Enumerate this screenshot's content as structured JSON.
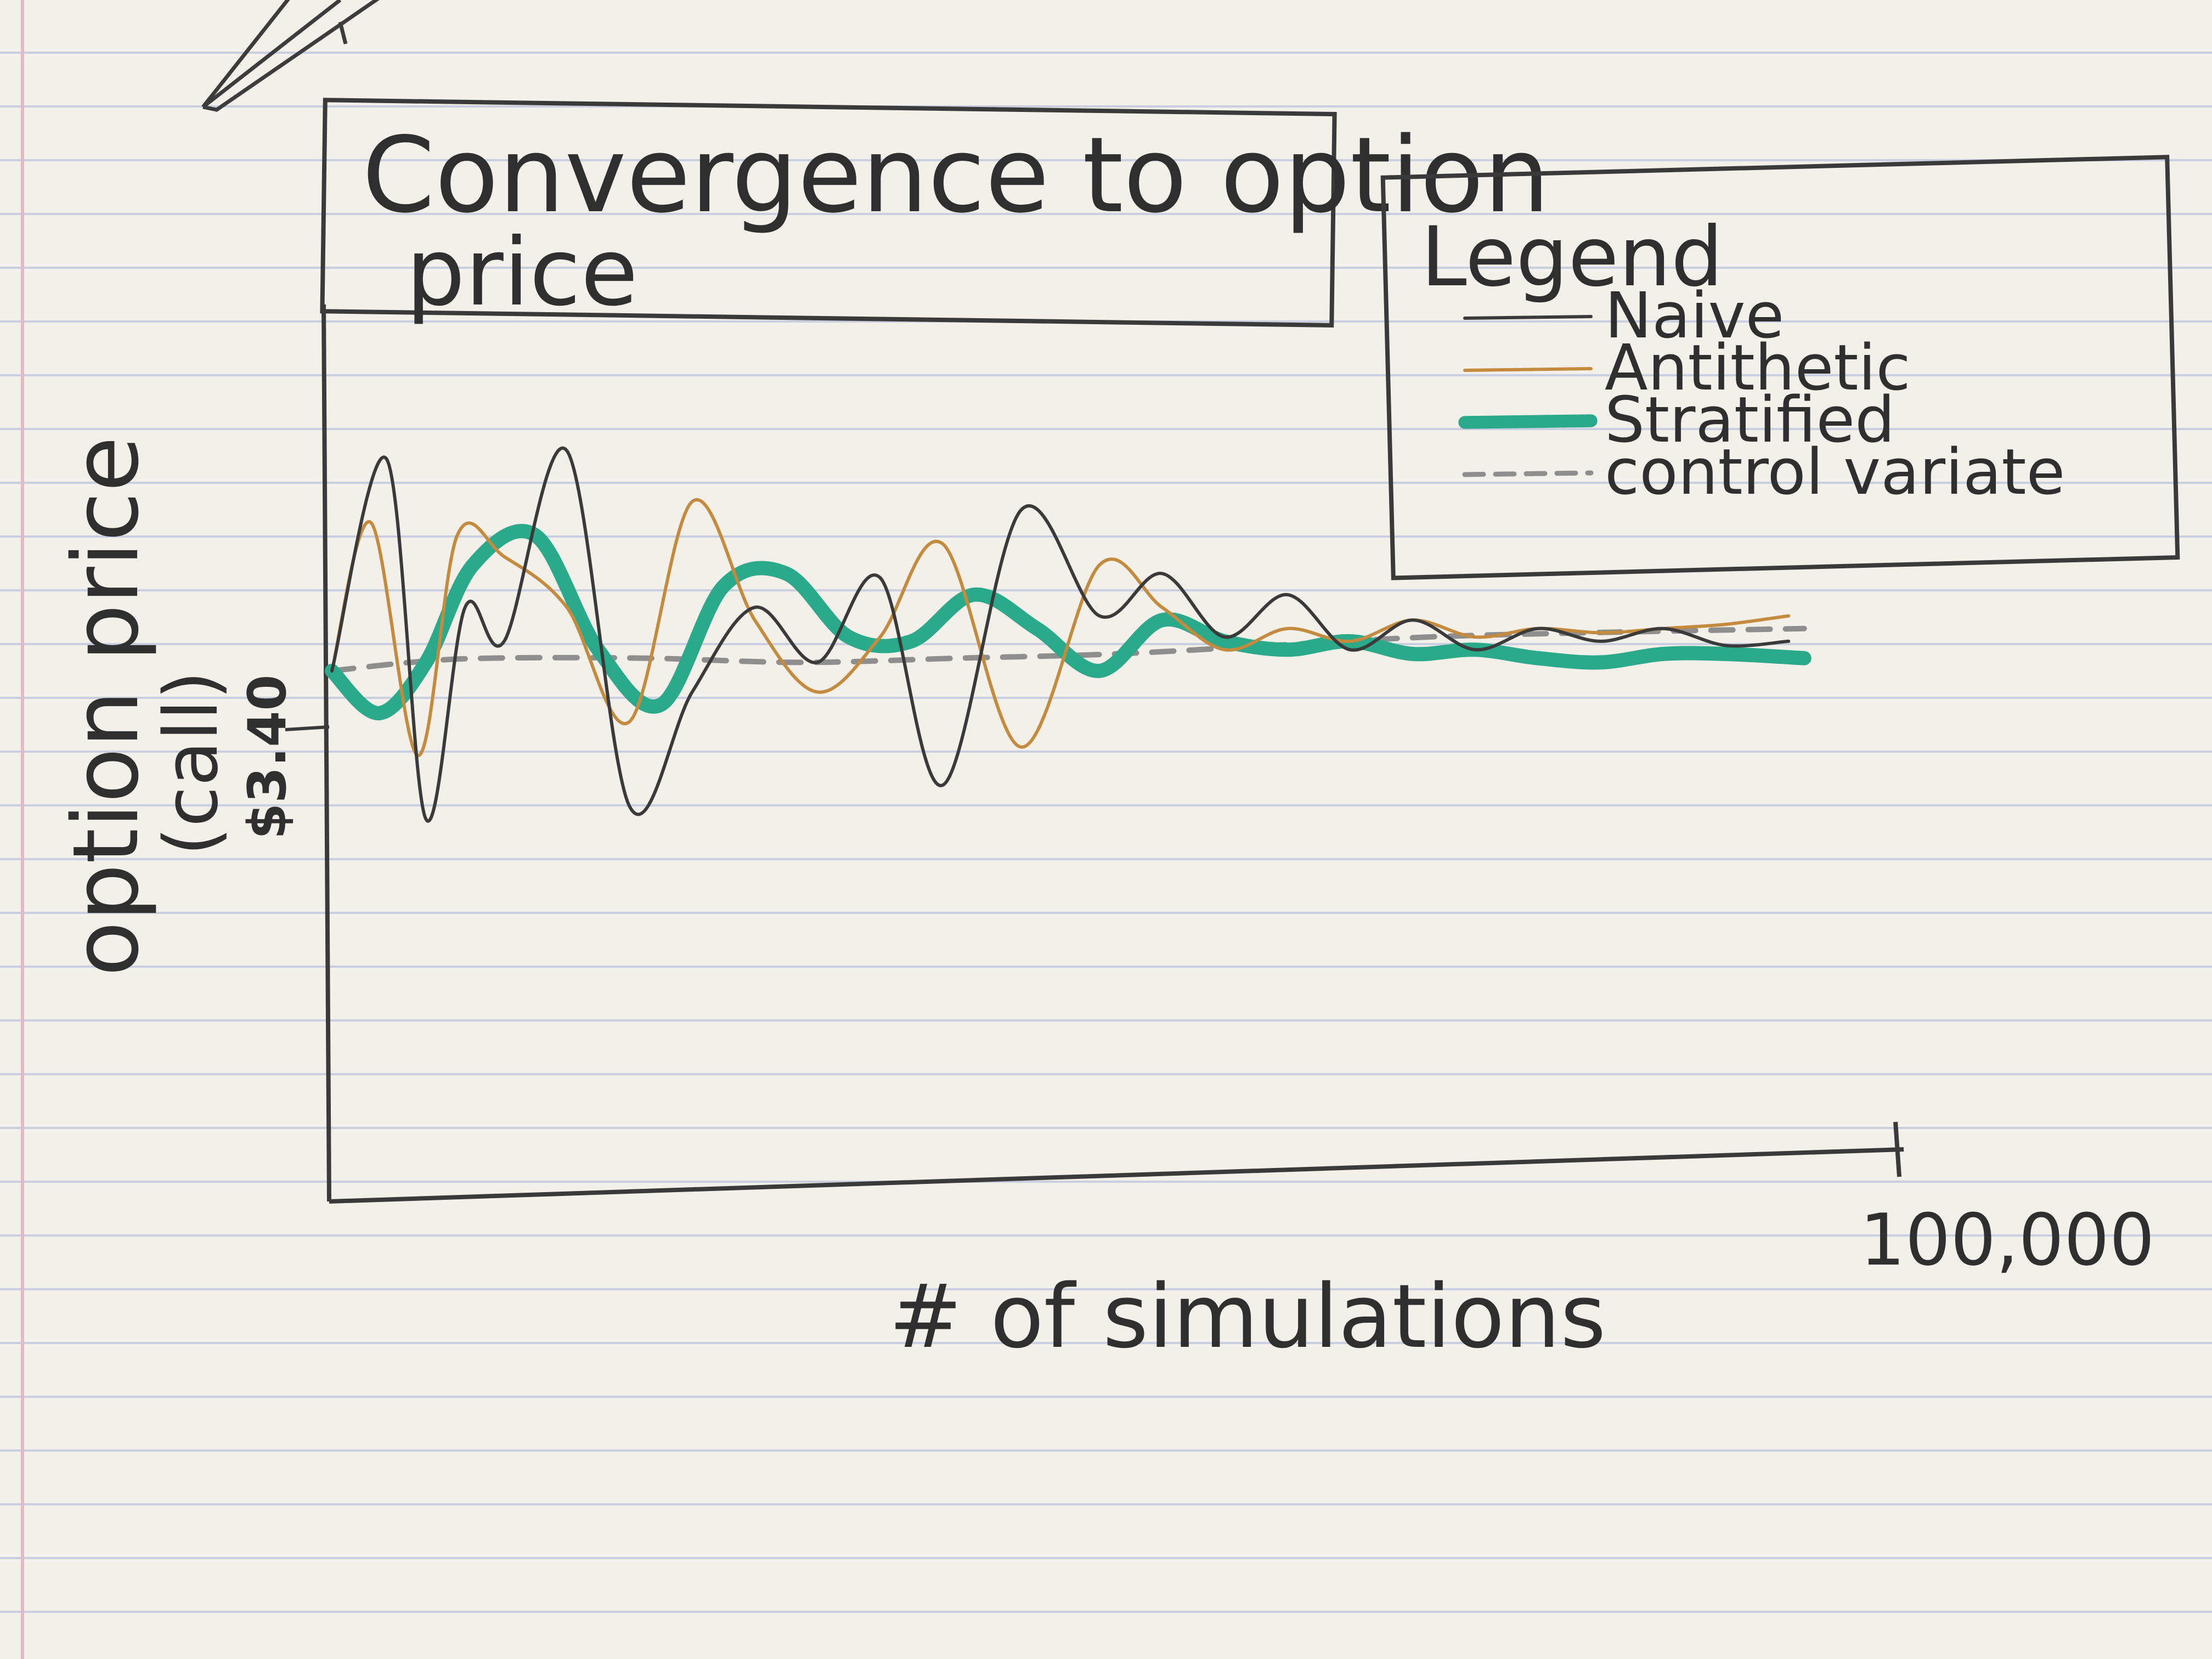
{
  "chart_data": {
    "type": "line",
    "title": "Convergence to option price",
    "xlabel": "# of simulations",
    "ylabel": "option price (call)",
    "x_tick_label": "100,000",
    "y_tick_label": "$3.40",
    "x_range": [
      0,
      100000
    ],
    "y_range": [
      2.6,
      4.0
    ],
    "legend_title": "Legend",
    "legend_position": "top-right",
    "series": [
      {
        "name": "Naive",
        "color": "#3a3a3a",
        "style": "thin",
        "points": [
          [
            0,
            3.4
          ],
          [
            3500,
            3.9
          ],
          [
            6000,
            3.05
          ],
          [
            8500,
            3.55
          ],
          [
            11000,
            3.47
          ],
          [
            15000,
            3.92
          ],
          [
            19000,
            3.08
          ],
          [
            23000,
            3.35
          ],
          [
            27000,
            3.55
          ],
          [
            31000,
            3.42
          ],
          [
            35000,
            3.62
          ],
          [
            39000,
            3.13
          ],
          [
            44000,
            3.78
          ],
          [
            49000,
            3.53
          ],
          [
            53000,
            3.63
          ],
          [
            57000,
            3.48
          ],
          [
            61000,
            3.58
          ],
          [
            65000,
            3.45
          ],
          [
            69000,
            3.52
          ],
          [
            73000,
            3.45
          ],
          [
            77000,
            3.5
          ],
          [
            81000,
            3.47
          ],
          [
            85000,
            3.5
          ],
          [
            89000,
            3.46
          ],
          [
            93000,
            3.47
          ]
        ]
      },
      {
        "name": "Antithetic",
        "color": "#c48a3d",
        "style": "thin",
        "points": [
          [
            0,
            3.4
          ],
          [
            2500,
            3.75
          ],
          [
            5500,
            3.2
          ],
          [
            8000,
            3.72
          ],
          [
            11000,
            3.67
          ],
          [
            15000,
            3.55
          ],
          [
            19000,
            3.28
          ],
          [
            23000,
            3.8
          ],
          [
            27000,
            3.52
          ],
          [
            31000,
            3.35
          ],
          [
            35000,
            3.48
          ],
          [
            39000,
            3.7
          ],
          [
            44000,
            3.22
          ],
          [
            49000,
            3.65
          ],
          [
            53000,
            3.55
          ],
          [
            57000,
            3.45
          ],
          [
            61000,
            3.5
          ],
          [
            65000,
            3.47
          ],
          [
            69000,
            3.52
          ],
          [
            73000,
            3.48
          ],
          [
            77000,
            3.5
          ],
          [
            81000,
            3.49
          ],
          [
            85000,
            3.5
          ],
          [
            89000,
            3.51
          ],
          [
            93000,
            3.53
          ]
        ]
      },
      {
        "name": "Stratified",
        "color": "#2aaa8a",
        "style": "thick",
        "points": [
          [
            0,
            3.4
          ],
          [
            3000,
            3.3
          ],
          [
            6000,
            3.42
          ],
          [
            9000,
            3.65
          ],
          [
            13000,
            3.72
          ],
          [
            17000,
            3.45
          ],
          [
            21000,
            3.32
          ],
          [
            25000,
            3.6
          ],
          [
            29000,
            3.63
          ],
          [
            33000,
            3.48
          ],
          [
            37000,
            3.47
          ],
          [
            41000,
            3.58
          ],
          [
            45000,
            3.5
          ],
          [
            49000,
            3.4
          ],
          [
            53000,
            3.52
          ],
          [
            57000,
            3.47
          ],
          [
            61000,
            3.45
          ],
          [
            65000,
            3.47
          ],
          [
            69000,
            3.44
          ],
          [
            73000,
            3.45
          ],
          [
            77000,
            3.43
          ],
          [
            81000,
            3.42
          ],
          [
            85000,
            3.44
          ],
          [
            89000,
            3.44
          ],
          [
            94000,
            3.43
          ]
        ]
      },
      {
        "name": "control variate",
        "color": "#8e8e8e",
        "style": "dashed",
        "points": [
          [
            0,
            3.4
          ],
          [
            5000,
            3.42
          ],
          [
            10000,
            3.43
          ],
          [
            20000,
            3.43
          ],
          [
            30000,
            3.42
          ],
          [
            40000,
            3.43
          ],
          [
            50000,
            3.44
          ],
          [
            60000,
            3.46
          ],
          [
            70000,
            3.48
          ],
          [
            80000,
            3.49
          ],
          [
            94000,
            3.5
          ]
        ]
      }
    ]
  }
}
